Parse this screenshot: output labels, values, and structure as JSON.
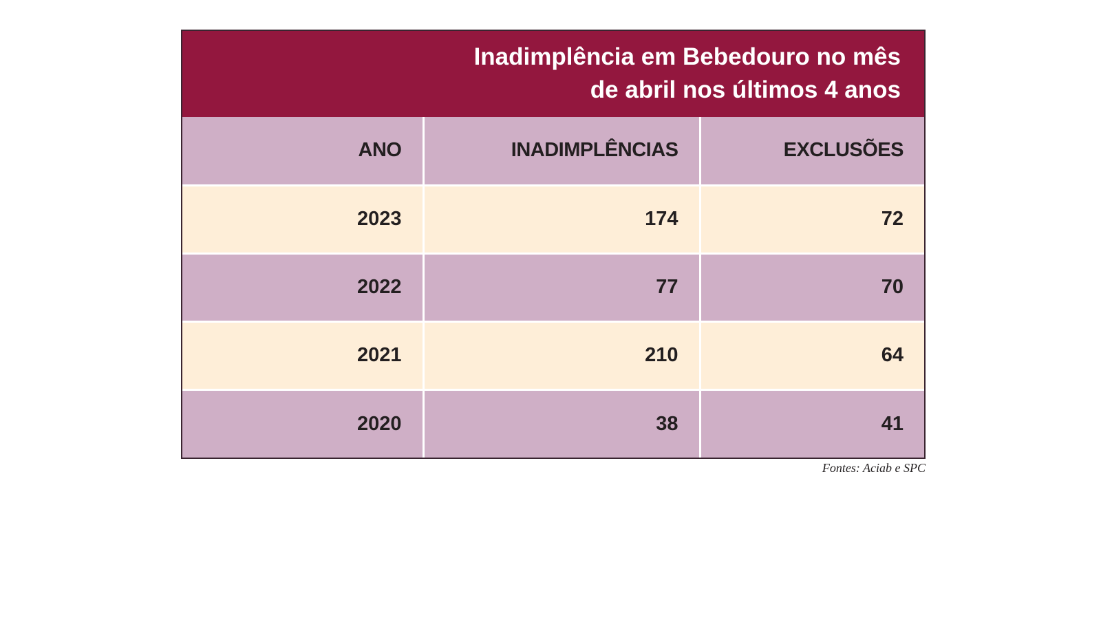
{
  "chart_data": {
    "type": "table",
    "title_line1": "Inadimplência em Bebedouro no mês",
    "title_line2": "de abril nos últimos 4 anos",
    "columns": [
      "ANO",
      "INADIMPLÊNCIAS",
      "EXCLUSÕES"
    ],
    "rows": [
      [
        "2023",
        "174",
        "72"
      ],
      [
        "2022",
        "77",
        "70"
      ],
      [
        "2021",
        "210",
        "64"
      ],
      [
        "2020",
        "38",
        "41"
      ]
    ],
    "source": "Fontes: Aciab e SPC"
  },
  "colors": {
    "title_background": "#93173e",
    "header_and_alt_rows": "#cfafc6",
    "light_rows": "#feeed8",
    "text": "#231f20"
  }
}
